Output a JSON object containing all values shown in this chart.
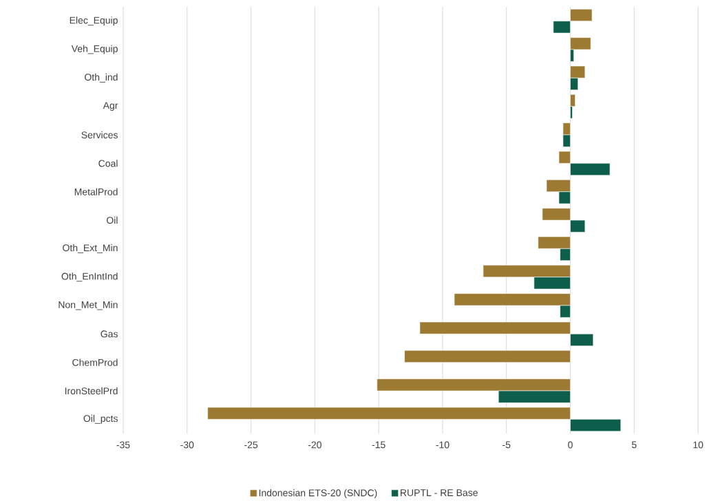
{
  "chart_data": {
    "type": "bar",
    "orientation": "horizontal",
    "categories": [
      "Elec_Equip",
      "Veh_Equip",
      "Oth_ind",
      "Agr",
      "Services",
      "Coal",
      "MetalProd",
      "Oil",
      "Oth_Ext_Min",
      "Oth_EnIntInd",
      "Non_Met_Min",
      "Gas",
      "ChemProd",
      "IronSteelPrd",
      "Oil_pcts"
    ],
    "series": [
      {
        "name": "Indonesian ETS-20 (SNDC)",
        "color": "#9c7a32",
        "values": [
          1.7,
          1.6,
          1.15,
          0.38,
          -0.57,
          -0.89,
          -1.86,
          -2.19,
          -2.52,
          -6.82,
          -9.08,
          -11.78,
          -12.98,
          -15.13,
          -28.39
        ]
      },
      {
        "name": "RUPTL - RE Base",
        "color": "#0d5e4b",
        "values": [
          -1.33,
          0.27,
          0.6,
          0.16,
          -0.57,
          3.1,
          -0.89,
          1.15,
          -0.8,
          -2.84,
          -0.8,
          1.79,
          null,
          -5.62,
          3.95
        ]
      }
    ],
    "xlim": [
      -35,
      10
    ],
    "xticks": [
      -35,
      -30,
      -25,
      -20,
      -15,
      -10,
      -5,
      0,
      5,
      10
    ],
    "grid": "x",
    "legend": "bottom"
  }
}
